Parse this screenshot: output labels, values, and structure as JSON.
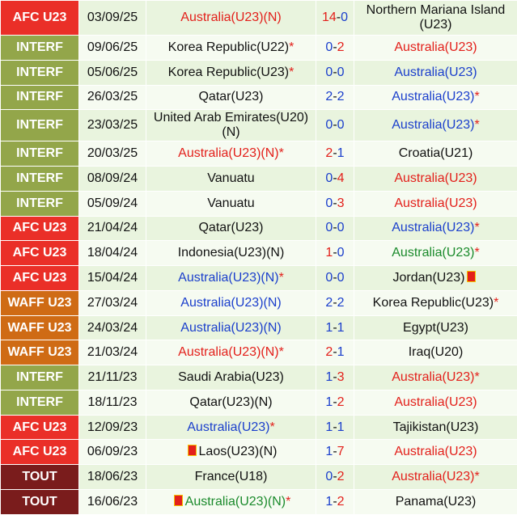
{
  "palette": {
    "red": "#e3201b",
    "blue": "#1b3fcc",
    "green": "#1a8a2b",
    "black": "#111111"
  },
  "competition_colors": {
    "AFC U23": "#ea2f28",
    "INTERF": "#93a64a",
    "WAFF U23": "#cf6b15",
    "TOUT": "#7a1c1c"
  },
  "score_separator": "-",
  "rows": [
    {
      "competition": "AFC U23",
      "date": "03/09/25",
      "home": {
        "name": "Australia(U23)(N)",
        "color": "red"
      },
      "score": [
        14,
        0
      ],
      "score_colors": [
        "red",
        "blue"
      ],
      "away": {
        "name": "Northern Mariana Island (U23)",
        "color": "black"
      }
    },
    {
      "competition": "INTERF",
      "date": "09/06/25",
      "home": {
        "name": "Korea Republic(U22)",
        "color": "black",
        "mark": "*"
      },
      "score": [
        0,
        2
      ],
      "score_colors": [
        "blue",
        "red"
      ],
      "away": {
        "name": "Australia(U23)",
        "color": "red"
      }
    },
    {
      "competition": "INTERF",
      "date": "05/06/25",
      "home": {
        "name": "Korea Republic(U23)",
        "color": "black",
        "mark": "*"
      },
      "score": [
        0,
        0
      ],
      "score_colors": [
        "blue",
        "blue"
      ],
      "away": {
        "name": "Australia(U23)",
        "color": "blue"
      }
    },
    {
      "competition": "INTERF",
      "date": "26/03/25",
      "home": {
        "name": "Qatar(U23)",
        "color": "black"
      },
      "score": [
        2,
        2
      ],
      "score_colors": [
        "blue",
        "blue"
      ],
      "away": {
        "name": "Australia(U23)",
        "color": "blue",
        "mark": "*"
      }
    },
    {
      "competition": "INTERF",
      "date": "23/03/25",
      "home": {
        "name": "United Arab Emirates(U20)(N)",
        "color": "black"
      },
      "score": [
        0,
        0
      ],
      "score_colors": [
        "blue",
        "blue"
      ],
      "away": {
        "name": "Australia(U23)",
        "color": "blue",
        "mark": "*"
      }
    },
    {
      "competition": "INTERF",
      "date": "20/03/25",
      "home": {
        "name": "Australia(U23)(N)",
        "color": "red",
        "mark": "*"
      },
      "score": [
        2,
        1
      ],
      "score_colors": [
        "red",
        "blue"
      ],
      "away": {
        "name": "Croatia(U21)",
        "color": "black"
      }
    },
    {
      "competition": "INTERF",
      "date": "08/09/24",
      "home": {
        "name": "Vanuatu",
        "color": "black"
      },
      "score": [
        0,
        4
      ],
      "score_colors": [
        "blue",
        "red"
      ],
      "away": {
        "name": "Australia(U23)",
        "color": "red"
      }
    },
    {
      "competition": "INTERF",
      "date": "05/09/24",
      "home": {
        "name": "Vanuatu",
        "color": "black"
      },
      "score": [
        0,
        3
      ],
      "score_colors": [
        "blue",
        "red"
      ],
      "away": {
        "name": "Australia(U23)",
        "color": "red"
      }
    },
    {
      "competition": "AFC U23",
      "date": "21/04/24",
      "home": {
        "name": "Qatar(U23)",
        "color": "black"
      },
      "score": [
        0,
        0
      ],
      "score_colors": [
        "blue",
        "blue"
      ],
      "away": {
        "name": "Australia(U23)",
        "color": "blue",
        "mark": "*"
      }
    },
    {
      "competition": "AFC U23",
      "date": "18/04/24",
      "home": {
        "name": "Indonesia(U23)(N)",
        "color": "black"
      },
      "score": [
        1,
        0
      ],
      "score_colors": [
        "red",
        "blue"
      ],
      "away": {
        "name": "Australia(U23)",
        "color": "green",
        "mark": "*"
      }
    },
    {
      "competition": "AFC U23",
      "date": "15/04/24",
      "home": {
        "name": "Australia(U23)(N)",
        "color": "blue",
        "mark": "*"
      },
      "score": [
        0,
        0
      ],
      "score_colors": [
        "blue",
        "blue"
      ],
      "away": {
        "name": "Jordan(U23)",
        "color": "black",
        "card": "after"
      }
    },
    {
      "competition": "WAFF U23",
      "date": "27/03/24",
      "home": {
        "name": "Australia(U23)(N)",
        "color": "blue"
      },
      "score": [
        2,
        2
      ],
      "score_colors": [
        "blue",
        "blue"
      ],
      "away": {
        "name": "Korea Republic(U23)",
        "color": "black",
        "mark": "*"
      }
    },
    {
      "competition": "WAFF U23",
      "date": "24/03/24",
      "home": {
        "name": "Australia(U23)(N)",
        "color": "blue"
      },
      "score": [
        1,
        1
      ],
      "score_colors": [
        "blue",
        "blue"
      ],
      "away": {
        "name": "Egypt(U23)",
        "color": "black"
      }
    },
    {
      "competition": "WAFF U23",
      "date": "21/03/24",
      "home": {
        "name": "Australia(U23)(N)",
        "color": "red",
        "mark": "*"
      },
      "score": [
        2,
        1
      ],
      "score_colors": [
        "red",
        "blue"
      ],
      "away": {
        "name": "Iraq(U20)",
        "color": "black"
      }
    },
    {
      "competition": "INTERF",
      "date": "21/11/23",
      "home": {
        "name": "Saudi Arabia(U23)",
        "color": "black"
      },
      "score": [
        1,
        3
      ],
      "score_colors": [
        "blue",
        "red"
      ],
      "away": {
        "name": "Australia(U23)",
        "color": "red",
        "mark": "*"
      }
    },
    {
      "competition": "INTERF",
      "date": "18/11/23",
      "home": {
        "name": "Qatar(U23)(N)",
        "color": "black"
      },
      "score": [
        1,
        2
      ],
      "score_colors": [
        "blue",
        "red"
      ],
      "away": {
        "name": "Australia(U23)",
        "color": "red"
      }
    },
    {
      "competition": "AFC U23",
      "date": "12/09/23",
      "home": {
        "name": "Australia(U23)",
        "color": "blue",
        "mark": "*"
      },
      "score": [
        1,
        1
      ],
      "score_colors": [
        "blue",
        "blue"
      ],
      "away": {
        "name": "Tajikistan(U23)",
        "color": "black"
      }
    },
    {
      "competition": "AFC U23",
      "date": "06/09/23",
      "home": {
        "name": "Laos(U23)(N)",
        "color": "black",
        "card": "before"
      },
      "score": [
        1,
        7
      ],
      "score_colors": [
        "blue",
        "red"
      ],
      "away": {
        "name": "Australia(U23)",
        "color": "red"
      }
    },
    {
      "competition": "TOUT",
      "date": "18/06/23",
      "home": {
        "name": "France(U18)",
        "color": "black"
      },
      "score": [
        0,
        2
      ],
      "score_colors": [
        "blue",
        "red"
      ],
      "away": {
        "name": "Australia(U23)",
        "color": "red",
        "mark": "*"
      }
    },
    {
      "competition": "TOUT",
      "date": "16/06/23",
      "home": {
        "name": "Australia(U23)(N)",
        "color": "green",
        "mark": "*",
        "card": "before"
      },
      "score": [
        1,
        2
      ],
      "score_colors": [
        "blue",
        "red"
      ],
      "away": {
        "name": "Panama(U23)",
        "color": "black"
      }
    }
  ]
}
